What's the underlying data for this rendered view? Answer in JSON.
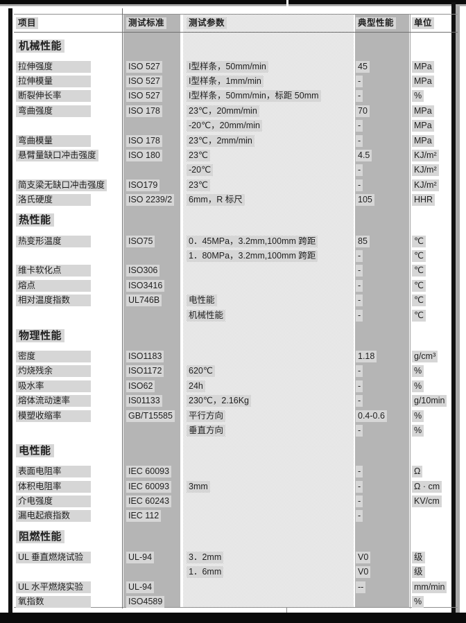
{
  "colors": {
    "column_gray": "#b5b5b5",
    "checker_gray": "#cfcfcf",
    "highlight_gray": "#d6d6d6"
  },
  "table": {
    "columns": [
      {
        "key": "item",
        "label": "项目"
      },
      {
        "key": "standard",
        "label": "测试标准"
      },
      {
        "key": "param",
        "label": "测试参数"
      },
      {
        "key": "value",
        "label": "典型性能"
      },
      {
        "key": "unit",
        "label": "单位"
      }
    ],
    "rows": [
      {
        "type": "section",
        "item": "机械性能"
      },
      {
        "type": "data",
        "item": "拉伸强度",
        "standard": "ISO 527",
        "param": "I型样条，50mm/min",
        "value": "45",
        "unit": "MPa"
      },
      {
        "type": "data",
        "item": "拉伸模量",
        "standard": "ISO 527",
        "param": "I型样条，1mm/min",
        "value": "-",
        "unit": "MPa"
      },
      {
        "type": "data",
        "item": "断裂伸长率",
        "standard": "ISO 527",
        "param": "I型样条，50mm/min，标距 50mm",
        "value": "-",
        "unit": "%"
      },
      {
        "type": "data",
        "item": "弯曲强度",
        "standard": "ISO 178",
        "param": "23℃，20mm/min",
        "value": "70",
        "unit": "MPa"
      },
      {
        "type": "data",
        "item": "",
        "standard": "",
        "param": "-20℃，20mm/min",
        "value": "-",
        "unit": "MPa"
      },
      {
        "type": "data",
        "item": "弯曲模量",
        "standard": "ISO 178",
        "param": "23℃，2mm/min",
        "value": "-",
        "unit": "MPa"
      },
      {
        "type": "data",
        "item": "悬臂量缺口冲击强度",
        "standard": "ISO 180",
        "param": "23℃",
        "value": "4.5",
        "unit": "KJ/m²"
      },
      {
        "type": "data",
        "item": "",
        "standard": "",
        "param": "-20℃",
        "value": "-",
        "unit": "KJ/m²"
      },
      {
        "type": "data",
        "item": "简支梁无缺口冲击强度",
        "standard": "ISO179",
        "param": "23℃",
        "value": "-",
        "unit": "KJ/m²"
      },
      {
        "type": "data",
        "item": "洛氏硬度",
        "standard": "ISO 2239/2",
        "param": "6mm，R 标尺",
        "value": "105",
        "unit": "HHR"
      },
      {
        "type": "section",
        "item": "热性能"
      },
      {
        "type": "data",
        "item": "热变形温度",
        "standard": "ISO75",
        "param": "0．45MPa，3.2mm,100mm 跨距",
        "value": "85",
        "unit": "℃"
      },
      {
        "type": "data",
        "item": "",
        "standard": "",
        "param": "1．80MPa，3.2mm,100mm 跨距",
        "value": "-",
        "unit": "℃"
      },
      {
        "type": "data",
        "item": "维卡软化点",
        "standard": "ISO306",
        "param": "",
        "value": "-",
        "unit": "℃"
      },
      {
        "type": "data",
        "item": "熔点",
        "standard": "ISO3416",
        "param": "",
        "value": "-",
        "unit": "℃"
      },
      {
        "type": "data",
        "item": "相对温度指数",
        "standard": "UL746B",
        "param": "电性能",
        "value": "-",
        "unit": "℃"
      },
      {
        "type": "data",
        "item": "",
        "standard": "",
        "param": "机械性能",
        "value": "-",
        "unit": "℃"
      },
      {
        "type": "section",
        "item": "物理性能"
      },
      {
        "type": "data",
        "item": "密度",
        "standard": "ISO1183",
        "param": "",
        "value": "1.18",
        "unit": "g/cm³"
      },
      {
        "type": "data",
        "item": "灼烧残余",
        "standard": "ISO1172",
        "param": "620℃",
        "value": "-",
        "unit": "%"
      },
      {
        "type": "data",
        "item": "吸水率",
        "standard": "ISO62",
        "param": "24h",
        "value": "-",
        "unit": "%"
      },
      {
        "type": "data",
        "item": "熔体流动速率",
        "standard": "IS01133",
        "param": "230℃，2.16Kg",
        "value": "-",
        "unit": "g/10min"
      },
      {
        "type": "data",
        "item": "模塑收缩率",
        "standard": "GB/T15585",
        "param": "平行方向",
        "value": "0.4-0.6",
        "unit": "%"
      },
      {
        "type": "data",
        "item": "",
        "standard": "",
        "param": "垂直方向",
        "value": "-",
        "unit": "%"
      },
      {
        "type": "section",
        "item": "电性能"
      },
      {
        "type": "data",
        "item": "表面电阻率",
        "standard": "IEC 60093",
        "param": "",
        "value": "-",
        "unit": "Ω"
      },
      {
        "type": "data",
        "item": "体积电阻率",
        "standard": "IEC 60093",
        "param": "3mm",
        "value": "-",
        "unit": "Ω · cm"
      },
      {
        "type": "data",
        "item": "介电强度",
        "standard": "IEC 60243",
        "param": "",
        "value": "-",
        "unit": "KV/cm"
      },
      {
        "type": "data",
        "item": "漏电起痕指数",
        "standard": "IEC 112",
        "param": "",
        "value": "-",
        "unit": ""
      },
      {
        "type": "section",
        "item": "阻燃性能"
      },
      {
        "type": "data",
        "item": "UL 垂直燃烧试验",
        "standard": "UL-94",
        "param": "3．2mm",
        "value": "V0",
        "unit": "级"
      },
      {
        "type": "data",
        "item": "",
        "standard": "",
        "param": "1．6mm",
        "value": "V0",
        "unit": "级"
      },
      {
        "type": "data",
        "item": "UL 水平燃烧实验",
        "standard": "UL-94",
        "param": "",
        "value": "--",
        "unit": "mm/min"
      },
      {
        "type": "data",
        "item": "氧指数",
        "standard": "ISO4589",
        "param": "",
        "value": "",
        "unit": "%"
      }
    ]
  }
}
